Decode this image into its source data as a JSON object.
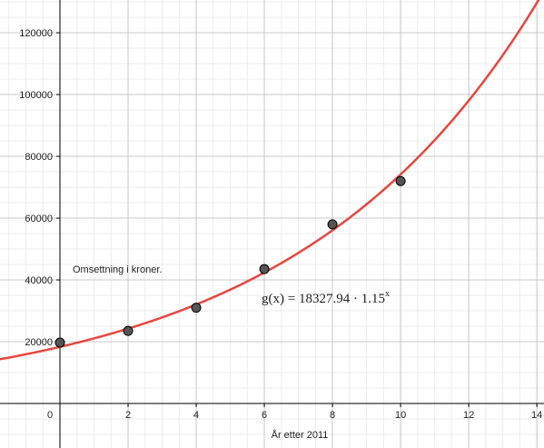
{
  "chart_data": {
    "type": "scatter",
    "x_label": "År etter 2011",
    "annotation": "Omsettning i kroner.",
    "x": [
      0,
      2,
      4,
      6,
      8,
      10
    ],
    "values": [
      19700,
      23500,
      31000,
      43500,
      58000,
      72000
    ],
    "point_color": "#555555",
    "fit": {
      "label": "g(x) = 18327.94 · 1.15",
      "label_exponent": "x",
      "coefficient": 18327.94,
      "base": 1.15,
      "color": "#e8463f"
    },
    "xlim": [
      -1.76,
      14.21
    ],
    "ylim": [
      -14400,
      130600
    ],
    "xticks": [
      0,
      2,
      4,
      6,
      8,
      10,
      12,
      14
    ],
    "yticks": [
      20000,
      40000,
      60000,
      80000,
      100000,
      120000
    ],
    "grid": true,
    "minor_grid": true
  }
}
